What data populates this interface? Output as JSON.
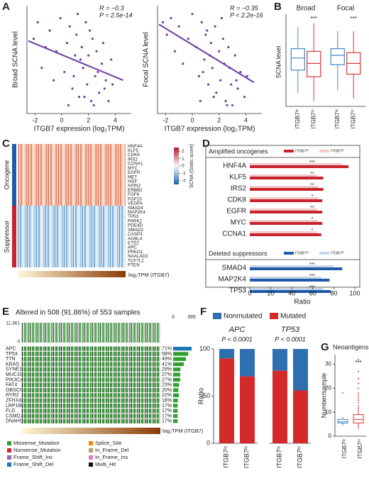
{
  "chart_data": [
    {
      "type": "scatter",
      "label": "A",
      "xlabel": "ITGB7 expression (log₂TPM)",
      "ylabel": "Broad SCNA level",
      "annotations": [
        "R = −0.3",
        "P = 2.5e-14"
      ],
      "color": "#6b3fa0",
      "xlim": [
        -2.6,
        5.2
      ],
      "xticks": [
        -2,
        0,
        2,
        4
      ],
      "ylim": [
        -1.3,
        1.3
      ],
      "x": [
        -2.1,
        -1.8,
        -1.5,
        -1.2,
        -0.9,
        -0.6,
        -0.4,
        -0.1,
        0.2,
        0.4,
        0.6,
        0.8,
        1.0,
        1.1,
        1.3,
        1.5,
        1.6,
        1.8,
        1.9,
        2.0,
        2.2,
        2.3,
        2.5,
        2.6,
        2.8,
        3.0,
        3.1,
        3.3,
        3.5,
        3.7,
        0.5,
        1.2,
        1.7,
        2.1,
        2.7,
        3.2,
        0.9,
        1.4,
        2.4,
        3.8
      ],
      "y": [
        0.5,
        0.9,
        -0.2,
        0.3,
        0.7,
        -0.5,
        0.2,
        1.0,
        -0.3,
        0.4,
        0.8,
        -0.7,
        0.1,
        0.6,
        -0.9,
        0.3,
        -0.2,
        0.9,
        -0.6,
        0.1,
        -1.0,
        0.5,
        -0.4,
        0.2,
        -0.8,
        -0.1,
        0.4,
        -0.5,
        -1.0,
        0.0,
        -1.1,
        1.1,
        -0.9,
        0.7,
        -0.3,
        -0.7,
        -0.4,
        0.0,
        -1.1,
        -0.6
      ],
      "fit": {
        "x": [
          -2.5,
          4.6
        ],
        "y": [
          0.45,
          -0.5
        ]
      }
    },
    {
      "type": "scatter",
      "xlabel": "ITGB7 expression (log₂TPM)",
      "ylabel": "Focal SCNA level",
      "annotations": [
        "R = −0.35",
        "P < 2.2e-16"
      ],
      "color": "#6b3fa0",
      "xlim": [
        -2.6,
        5.2
      ],
      "xticks": [
        -2,
        0,
        2,
        4
      ],
      "ylim": [
        -1.3,
        1.3
      ],
      "x": [
        -2.2,
        -1.9,
        -1.6,
        -1.3,
        -1.0,
        -0.7,
        -0.3,
        0.0,
        0.3,
        0.5,
        0.7,
        0.9,
        1.0,
        1.2,
        1.4,
        1.5,
        1.7,
        1.8,
        2.0,
        2.1,
        2.2,
        2.4,
        2.5,
        2.7,
        2.9,
        3.0,
        3.2,
        3.4,
        3.6,
        3.9,
        0.6,
        1.1,
        1.6,
        2.3,
        2.8,
        3.3,
        0.8,
        1.3,
        2.6,
        4.1
      ],
      "y": [
        0.9,
        0.6,
        1.0,
        0.2,
        0.8,
        -0.1,
        0.5,
        1.1,
        0.3,
        -0.4,
        0.9,
        0.0,
        0.6,
        -0.6,
        0.4,
        -0.2,
        0.8,
        -0.8,
        0.2,
        -0.5,
        1.0,
        -0.1,
        -1.0,
        0.3,
        -0.6,
        -1.1,
        0.1,
        -0.7,
        -0.3,
        -0.9,
        -1.0,
        0.7,
        -0.9,
        0.5,
        -0.2,
        -0.5,
        -0.3,
        0.1,
        -1.1,
        -0.4
      ],
      "fit": {
        "x": [
          -2.5,
          4.6
        ],
        "y": [
          0.85,
          -0.55
        ]
      }
    },
    {
      "type": "box",
      "label": "B",
      "ylabel": "SCNA level",
      "categories": [
        "Broad",
        "Focal"
      ],
      "annotations": [
        "***",
        "***"
      ],
      "ylim": [
        -1.5,
        1.8
      ],
      "series": [
        {
          "name": "ITGB7ˡᵒ",
          "color": "#3d8bc4",
          "whislo": [
            -1.0,
            -0.9
          ],
          "q1": [
            -0.15,
            0.05
          ],
          "median": [
            0.3,
            0.4
          ],
          "q3": [
            0.65,
            0.65
          ],
          "whishi": [
            1.45,
            1.3
          ]
        },
        {
          "name": "ITGB7ʰⁱ",
          "color": "#d63a3a",
          "whislo": [
            -1.3,
            -1.2
          ],
          "q1": [
            -0.4,
            -0.3
          ],
          "median": [
            0.1,
            0.1
          ],
          "q3": [
            0.55,
            0.5
          ],
          "whishi": [
            1.6,
            1.3
          ]
        }
      ]
    },
    {
      "type": "heatmap",
      "label": "C",
      "groups": [
        "Oncogene",
        "Suppressor"
      ],
      "rows": [
        "HNF4A",
        "KLF5",
        "CDK8",
        "IRS2",
        "CCNA1",
        "MYC",
        "EGFR",
        "MET",
        "HGF",
        "AXIN2",
        "ERBB2",
        "FGF6",
        "FGF23",
        "VEGFA",
        "SMAD4",
        "MAP2K4",
        "TP53",
        "PARK2",
        "PDE4D",
        "SMAD3",
        "CASP3",
        "AGBL4",
        "ETS2",
        "APC",
        "PRKG1",
        "NAALAD2",
        "TCF7L2",
        "PTEN"
      ],
      "xlabel": "log₂TPM (ITGB7)",
      "colorbar": {
        "title": "SCNA (Gistic score)",
        "ylim": [
          -2.5,
          2.5
        ],
        "yticks": [
          2,
          1,
          0,
          -1,
          -2
        ]
      }
    },
    {
      "type": "bar",
      "label": "D",
      "xlabel": "Ratio",
      "xlim": [
        0,
        100
      ],
      "xticks": [
        0,
        20,
        40,
        60,
        80,
        100
      ],
      "sections": [
        {
          "title": "Amplified oncogenes",
          "categories": [
            "HNF4A",
            "KLF5",
            "IRS2",
            "CDK8",
            "EGFR",
            "MYC",
            "CCNA1"
          ],
          "annotations": [
            "***",
            "**",
            "**",
            "*",
            "**",
            "*",
            "*"
          ],
          "series": [
            {
              "name": "ITGB7ˡᵒ",
              "color": "#c8232c",
              "values": [
                94,
                70,
                70,
                69,
                69,
                69,
                68
              ]
            },
            {
              "name": "ITGB7ʰⁱ",
              "color": "#f4c9c9",
              "values": [
                88,
                64,
                65,
                65,
                64,
                65,
                64
              ]
            }
          ]
        },
        {
          "title": "Deleted suppressors",
          "categories": [
            "SMAD4",
            "MAP2K4",
            "TP53"
          ],
          "annotations": [
            "***",
            "***",
            "***"
          ],
          "series": [
            {
              "name": "ITGB7ˡᵒ",
              "color": "#1f5aa6",
              "values": [
                88,
                76,
                77
              ]
            },
            {
              "name": "ITGB7ʰⁱ",
              "color": "#c6d6ec",
              "values": [
                80,
                68,
                70
              ]
            }
          ]
        }
      ]
    },
    {
      "type": "oncoprint",
      "label": "E",
      "title": "Altered in 508 (91.86%) of 553 samples",
      "top_ticks": [
        {
          "value": 11361,
          "label": "11,361"
        },
        0
      ],
      "right_ticks": [
        0,
        395
      ],
      "genes": [
        "APC",
        "TP53",
        "TTN",
        "KRAS",
        "SYNE1",
        "MUC16",
        "PIK3CA",
        "FAT4",
        "OBSCN",
        "RYR2",
        "ZFHX4",
        "LRP1B",
        "FLG",
        "CSMD3",
        "DNAH5"
      ],
      "values": [
        71,
        58,
        49,
        41,
        28,
        27,
        27,
        23,
        20,
        22,
        18,
        17,
        17,
        17,
        17
      ],
      "value_labels": [
        "71%",
        "58%",
        "49%",
        "41%",
        "28%",
        "27%",
        "27%",
        "23%",
        "20%",
        "22%",
        "18%",
        "17%",
        "17%",
        "17%",
        "17%"
      ],
      "xlabel": "log₂TPM (ITGB7)",
      "legend": [
        {
          "name": "Missense_Mutation",
          "color": "#2fa02f"
        },
        {
          "name": "Nonsense_Mutation",
          "color": "#d62728"
        },
        {
          "name": "Frame_Shift_Ins",
          "color": "#9467bd"
        },
        {
          "name": "Frame_Shift_Del",
          "color": "#1f77b4"
        },
        {
          "name": "Splice_Site",
          "color": "#ff7f0e"
        },
        {
          "name": "In_Frame_Del",
          "color": "#c49c6b"
        },
        {
          "name": "In_Frame_Ins",
          "color": "#e377c2"
        },
        {
          "name": "Multi_Hit",
          "color": "#111111"
        }
      ]
    },
    {
      "type": "stacked_bar",
      "label": "F",
      "ylabel": "Ratio",
      "genes": [
        "APC",
        "TP53"
      ],
      "annotations": [
        "P < 0.0001",
        "P < 0.0001"
      ],
      "categories": [
        "ITGB7ˡᵒ",
        "ITGB7ʰⁱ"
      ],
      "ylim": [
        0,
        100
      ],
      "yticks": [
        0,
        50,
        100
      ],
      "series": [
        {
          "name": "Mutated",
          "color": "#d42a2a",
          "values": [
            [
              90,
              71
            ],
            [
              77,
              56
            ]
          ]
        },
        {
          "name": "Nonmutated",
          "color": "#2e6fb0",
          "values": [
            [
              10,
              29
            ],
            [
              23,
              44
            ]
          ]
        }
      ]
    },
    {
      "type": "box2",
      "label": "G",
      "title": "Neoantigens",
      "ylabel": "Number/sample",
      "annotation": "***",
      "categories": [
        "ITGB7ˡᵒ",
        "ITGB7ʰⁱ"
      ],
      "colors": [
        "#3d8bc4",
        "#d63a3a"
      ],
      "ylim": [
        0,
        34
      ],
      "yticks": [
        0,
        10,
        20,
        30
      ],
      "whislo": [
        4.5,
        3
      ],
      "q1": [
        5.5,
        5.5
      ],
      "median": [
        6,
        7
      ],
      "q3": [
        7,
        9
      ],
      "whishi": [
        8,
        13
      ],
      "outliers": [
        [
          18
        ],
        [
          14,
          15,
          16,
          17,
          18,
          20,
          22,
          24,
          27,
          32
        ]
      ]
    }
  ]
}
